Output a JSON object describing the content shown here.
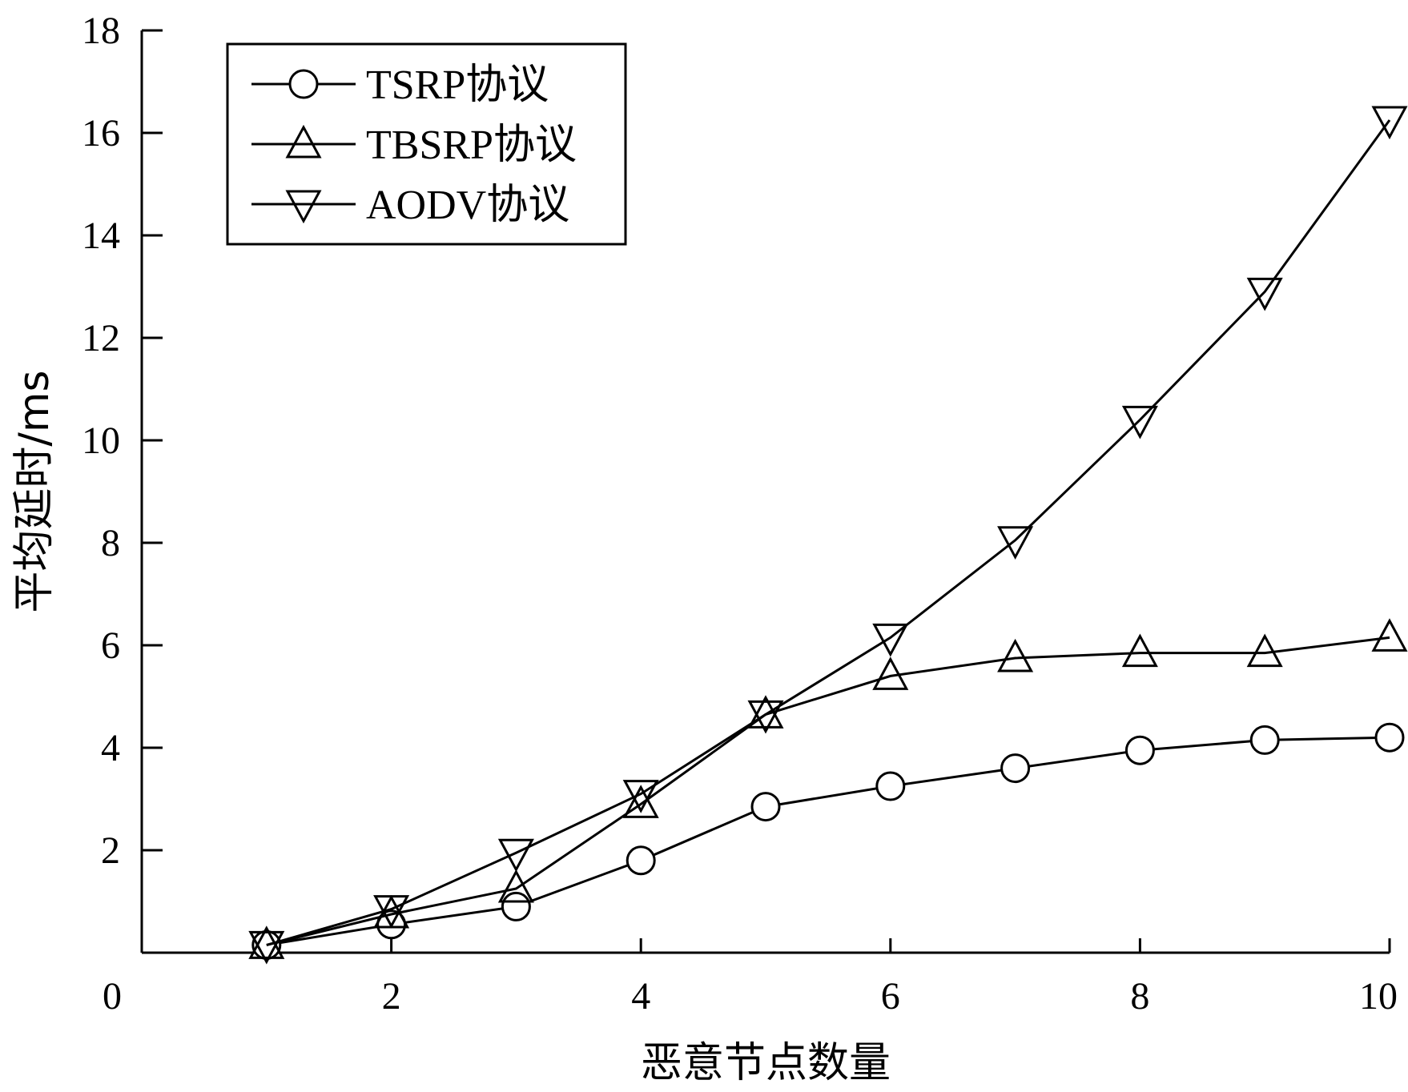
{
  "chart_data": {
    "type": "line",
    "xlabel": "恶意节点数量",
    "ylabel": "平均延时/ms",
    "xlim": [
      0,
      10
    ],
    "ylim": [
      0,
      18
    ],
    "x_ticks": [
      0,
      2,
      4,
      6,
      8,
      10
    ],
    "y_ticks": [
      2,
      4,
      6,
      8,
      10,
      12,
      14,
      16,
      18
    ],
    "x": [
      1,
      2,
      3,
      4,
      5,
      6,
      7,
      8,
      9,
      10
    ],
    "grid": false,
    "legend_position": "top-left",
    "series": [
      {
        "name": "TSRP协议",
        "marker": "circle",
        "values": [
          0.15,
          0.55,
          0.9,
          1.8,
          2.85,
          3.25,
          3.6,
          3.95,
          4.15,
          4.2
        ]
      },
      {
        "name": "TBSRP协议",
        "marker": "triangle-up",
        "values": [
          0.15,
          0.75,
          1.25,
          2.9,
          4.65,
          5.4,
          5.75,
          5.85,
          5.85,
          6.15
        ]
      },
      {
        "name": "AODV协议",
        "marker": "triangle-down",
        "values": [
          0.15,
          0.85,
          1.95,
          3.1,
          4.65,
          6.15,
          8.05,
          10.4,
          12.9,
          16.25
        ]
      }
    ]
  }
}
